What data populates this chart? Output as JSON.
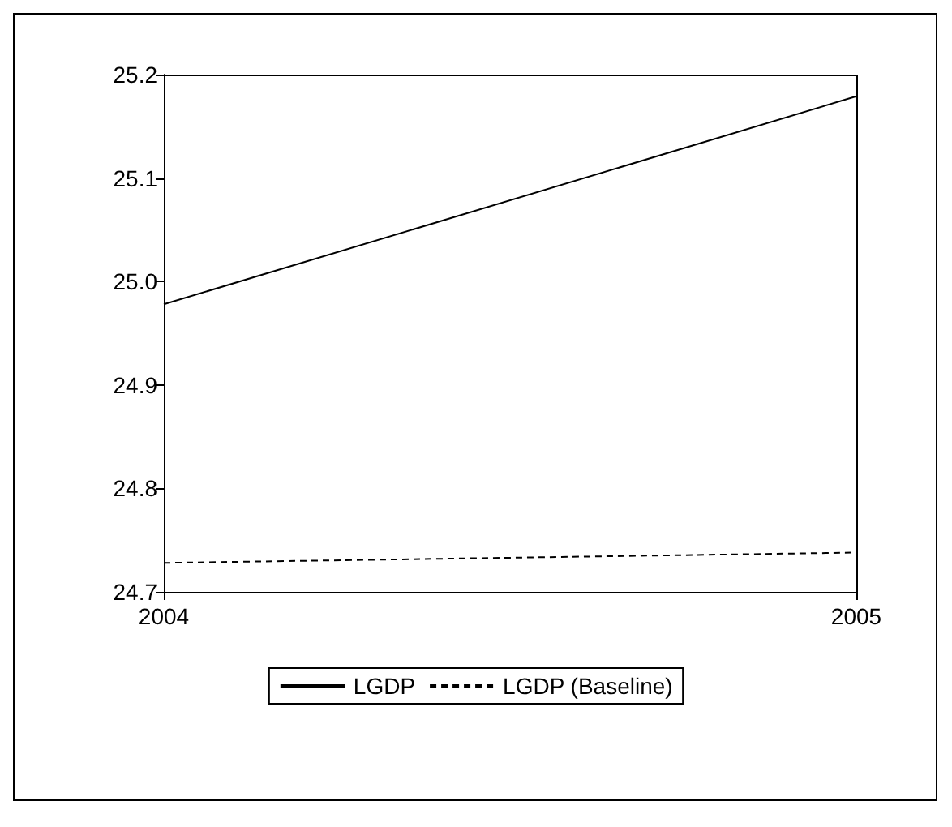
{
  "chart_data": {
    "type": "line",
    "categories": [
      "2004",
      "2005"
    ],
    "series": [
      {
        "name": "LGDP",
        "color": "#000000",
        "line_style": "solid",
        "values": [
          24.978,
          25.179
        ]
      },
      {
        "name": "LGDP (Baseline)",
        "color": "#000000",
        "line_style": "dashed",
        "values": [
          24.728,
          24.738
        ]
      }
    ],
    "ylim": [
      24.7,
      25.2
    ],
    "yticks": [
      24.7,
      24.8,
      24.9,
      {
        "value": 25,
        "label": "25.0"
      },
      25.1,
      25.2
    ],
    "legend": "bottom",
    "marker": "none"
  }
}
